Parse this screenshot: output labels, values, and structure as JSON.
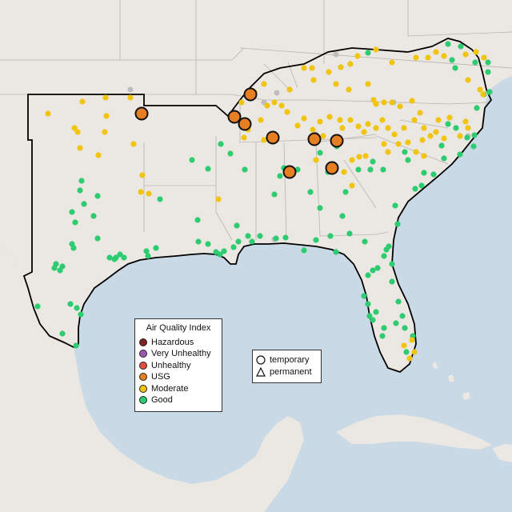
{
  "map": {
    "colors": {
      "water": "#c9d9e6",
      "land": "#ebe7e2",
      "hazardous": "#7e2323",
      "very_unhealthy": "#9b59b6",
      "unhealthy": "#e74c3c",
      "usg": "#e67e22",
      "moderate": "#f1c40f",
      "good": "#2ecc71",
      "no_data": "#bdbdbd"
    }
  },
  "legend_aqi": {
    "title": "Air Quality Index",
    "items": [
      {
        "label": "Hazardous",
        "color": "#7e2323"
      },
      {
        "label": "Very Unhealthy",
        "color": "#9b59b6"
      },
      {
        "label": "Unhealthy",
        "color": "#e74c3c"
      },
      {
        "label": "USG",
        "color": "#e67e22"
      },
      {
        "label": "Moderate",
        "color": "#f1c40f"
      },
      {
        "label": "Good",
        "color": "#2ecc71"
      }
    ]
  },
  "legend_monitor": {
    "items": [
      {
        "label": "temporary",
        "shape": "circle"
      },
      {
        "label": "permanent",
        "shape": "triangle"
      }
    ]
  }
}
